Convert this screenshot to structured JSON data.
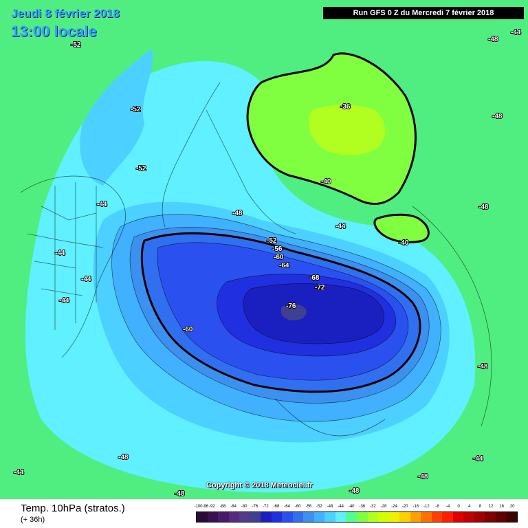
{
  "header": {
    "date": "Jeudi 8 février 2018",
    "time": "13:00 locale",
    "run": "Run GFS 0 Z du Mercredi 7 février 2018"
  },
  "copyright": "Copyright © 2018 Meteociel.fr",
  "footer": {
    "title": "Temp. 10hPa (stratos.)",
    "horizon": "(+ 36h)"
  },
  "legend": {
    "labels": [
      "-100-96",
      "-92",
      "-88",
      "-84",
      "-80",
      "-76",
      "-72",
      "-68",
      "-64",
      "-60",
      "-56",
      "-52",
      "-48",
      "-44",
      "-40",
      "-36",
      "-32",
      "-28",
      "-24",
      "-20",
      "-16",
      "-12",
      "-8",
      "-4",
      "0",
      "4",
      "8",
      "12",
      "16",
      "20"
    ],
    "colors": [
      "#2a0a3a",
      "#3a1050",
      "#4a1a6a",
      "#5a2a80",
      "#503a8a",
      "#404090",
      "#1a20c0",
      "#2030e0",
      "#2a50f0",
      "#3070f0",
      "#3c90f0",
      "#40b0ff",
      "#4cd0ff",
      "#60f0ff",
      "#50ff90",
      "#80ff40",
      "#b0ff20",
      "#d0ff00",
      "#f0f000",
      "#ffd000",
      "#ffa000",
      "#ff7000",
      "#ff4000",
      "#ff2000",
      "#e00000",
      "#c00000",
      "#a00000",
      "#800000",
      "#600000",
      "#400000"
    ]
  },
  "map_labels": [
    {
      "text": "-52"
    },
    {
      "text": "-52"
    },
    {
      "text": "-52"
    },
    {
      "text": "-44"
    },
    {
      "text": "-44"
    },
    {
      "text": "-44"
    },
    {
      "text": "-48"
    },
    {
      "text": "-48"
    },
    {
      "text": "-48"
    },
    {
      "text": "-44"
    },
    {
      "text": "-48"
    },
    {
      "text": "-36"
    },
    {
      "text": "-40"
    },
    {
      "text": "-40"
    },
    {
      "text": "-44"
    },
    {
      "text": "-52"
    },
    {
      "text": "-56"
    },
    {
      "text": "-60"
    },
    {
      "text": "-64"
    },
    {
      "text": "-68"
    },
    {
      "text": "-72"
    },
    {
      "text": "-76"
    },
    {
      "text": "-60"
    },
    {
      "text": "-48"
    },
    {
      "text": "-48"
    },
    {
      "text": "-44"
    },
    {
      "text": "-44"
    },
    {
      "text": "-48"
    },
    {
      "text": "-48"
    },
    {
      "text": "-44"
    },
    {
      "text": "-48"
    }
  ]
}
